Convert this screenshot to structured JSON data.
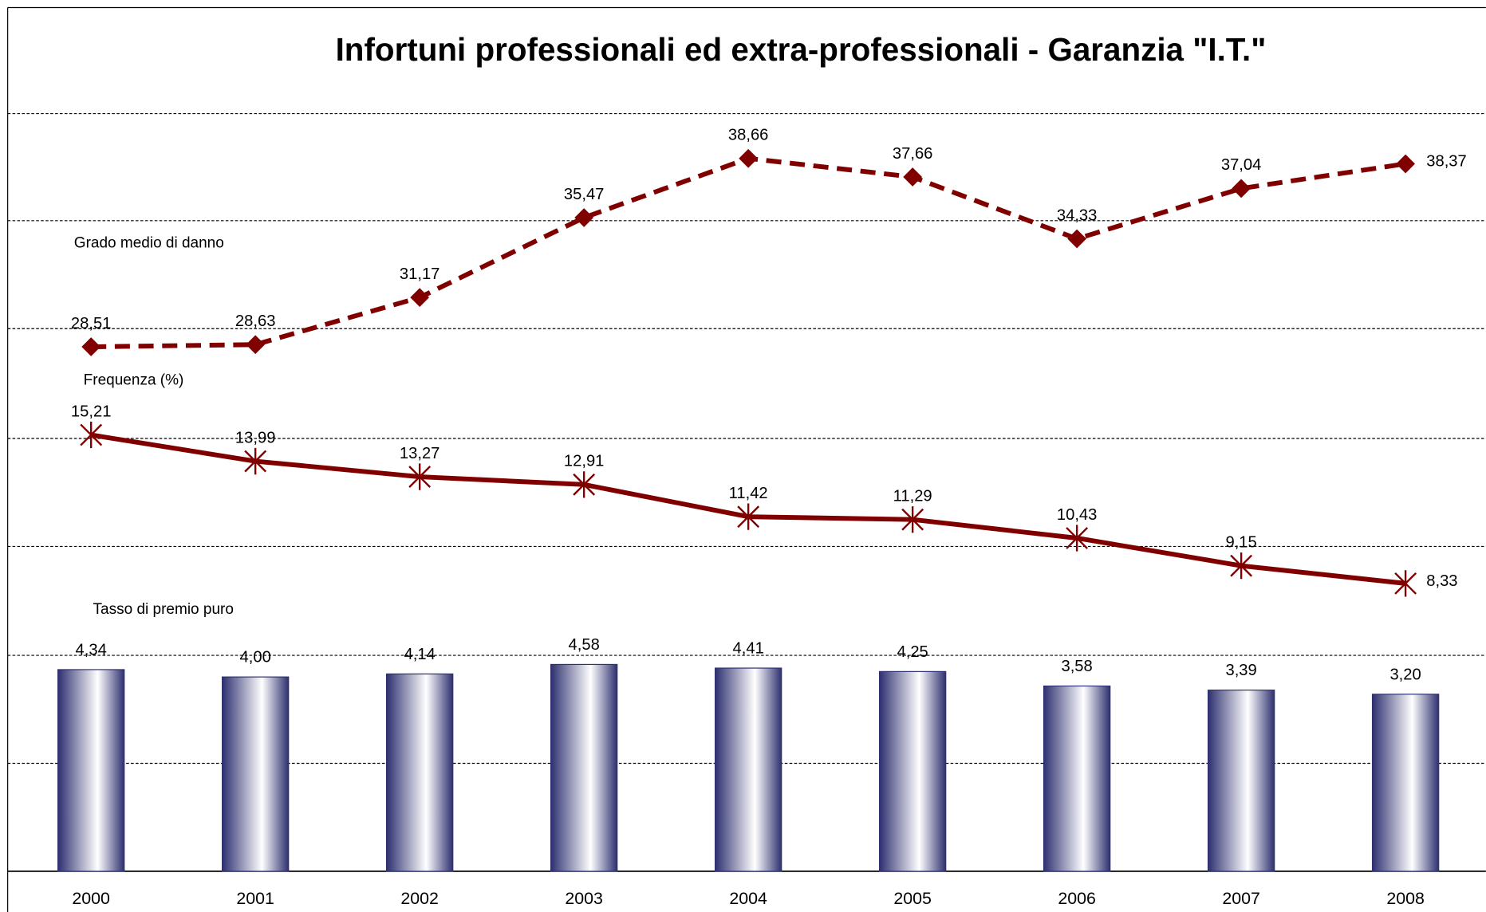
{
  "chart_data": {
    "type": "bar",
    "title": "Infortuni professionali ed extra-professionali - Garanzia \"I.T.\"",
    "categories": [
      "2000",
      "2001",
      "2002",
      "2003",
      "2004",
      "2005",
      "2006",
      "2007",
      "2008"
    ],
    "series": [
      {
        "name": "Tasso di premio puro",
        "type": "bar",
        "color": "#2e3070",
        "values": [
          4.34,
          4.0,
          4.14,
          4.58,
          4.41,
          4.25,
          3.58,
          3.39,
          3.2
        ],
        "value_labels": [
          "4,34",
          "4,00",
          "4,14",
          "4,58",
          "4,41",
          "4,25",
          "3,58",
          "3,39",
          "3,20"
        ]
      },
      {
        "name": "Frequenza (%)",
        "type": "line",
        "color": "#800000",
        "marker": "star",
        "values": [
          15.21,
          13.99,
          13.27,
          12.91,
          11.42,
          11.29,
          10.43,
          9.15,
          8.33
        ],
        "value_labels": [
          "15,21",
          "13,99",
          "13,27",
          "12,91",
          "11,42",
          "11,29",
          "10,43",
          "9,15",
          "8,33"
        ]
      },
      {
        "name": "Grado medio di danno",
        "type": "line",
        "color": "#800000",
        "marker": "diamond",
        "dashed": true,
        "values": [
          28.51,
          28.63,
          31.17,
          35.47,
          38.66,
          37.66,
          34.33,
          37.04,
          38.37
        ],
        "value_labels": [
          "28,51",
          "28,63",
          "31,17",
          "35,47",
          "38,66",
          "37,66",
          "34,33",
          "37,04",
          "38,37"
        ]
      }
    ]
  }
}
